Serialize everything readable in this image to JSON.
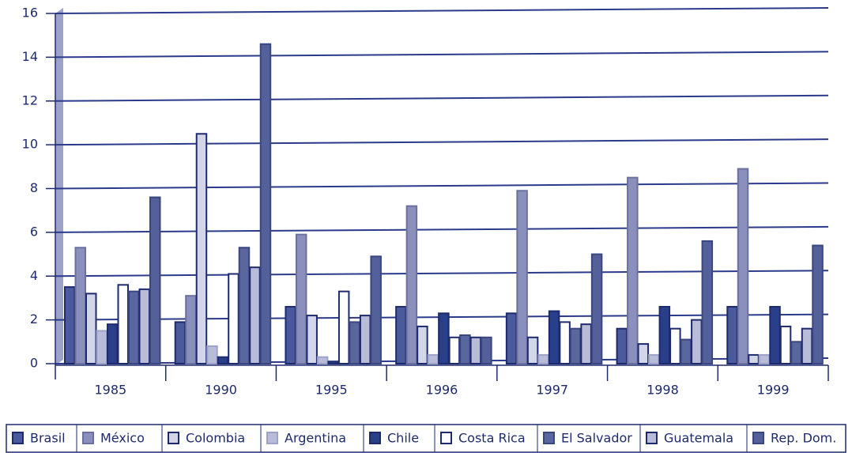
{
  "chart_data": {
    "type": "bar",
    "categories": [
      "1985",
      "1990",
      "1995",
      "1996",
      "1997",
      "1998",
      "1999"
    ],
    "series": [
      {
        "name": "Brasil",
        "color": "#4a5a9a",
        "values": [
          3.5,
          1.9,
          2.6,
          2.6,
          2.3,
          1.6,
          2.6
        ]
      },
      {
        "name": "México",
        "color": "#8a90bb",
        "values": [
          5.3,
          3.1,
          5.9,
          7.2,
          7.9,
          8.5,
          8.9
        ]
      },
      {
        "name": "Colombia",
        "color": "#d3d6e8",
        "values": [
          3.2,
          10.5,
          2.2,
          1.7,
          1.2,
          0.9,
          0.4
        ]
      },
      {
        "name": "Argentina",
        "color": "#b8bcd9",
        "values": [
          1.5,
          0.8,
          0.3,
          0.4,
          0.4,
          0.4,
          0.4
        ]
      },
      {
        "name": "Chile",
        "color": "#2a3f8a",
        "values": [
          1.8,
          0.3,
          0.1,
          2.3,
          2.4,
          2.6,
          2.6
        ]
      },
      {
        "name": "Costa Rica",
        "color": "#ffffff",
        "values": [
          3.6,
          4.1,
          3.3,
          1.2,
          1.9,
          1.6,
          1.7
        ]
      },
      {
        "name": "El Salvador",
        "color": "#5a669e",
        "values": [
          3.3,
          5.3,
          1.9,
          1.3,
          1.6,
          1.1,
          1.0
        ]
      },
      {
        "name": "Guatemala",
        "color": "#b8bcd9",
        "values": [
          3.4,
          4.4,
          2.2,
          1.2,
          1.8,
          2.0,
          1.6
        ]
      },
      {
        "name": "Rep. Dom.",
        "color": "#54609a",
        "values": [
          7.6,
          14.6,
          4.9,
          1.2,
          5.0,
          5.6,
          5.4
        ]
      }
    ],
    "ylim": [
      0,
      16
    ],
    "yticks": [
      0,
      2,
      4,
      6,
      8,
      10,
      12,
      14,
      16
    ],
    "grid": true,
    "legend": "bottom"
  }
}
